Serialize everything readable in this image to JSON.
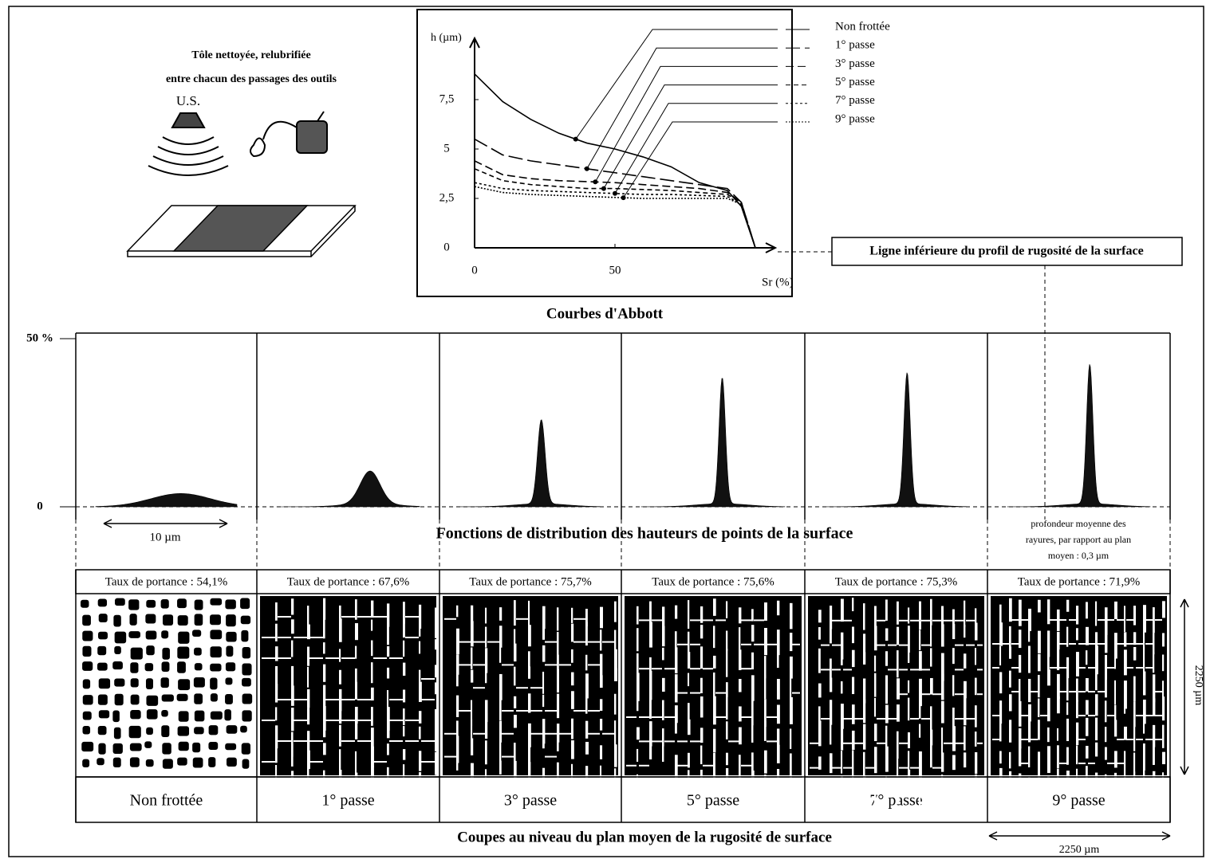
{
  "header": {
    "line1": "Tôle nettoyée, relubrifiée",
    "line2": "entre chacun des passages des outils",
    "us_label": "U.S."
  },
  "chart_data": {
    "type": "line",
    "y_label": "h (µm)",
    "x_label": "Sr (%)",
    "caption": "Courbes d'Abbott",
    "xlim": [
      0,
      105
    ],
    "ylim": [
      0,
      10
    ],
    "xticks": [
      0,
      50
    ],
    "yticks": [
      0,
      {
        "value": 2.5,
        "label": "2,5"
      },
      5,
      {
        "value": 7.5,
        "label": "7,5"
      }
    ],
    "x": [
      0,
      10,
      20,
      30,
      40,
      50,
      60,
      70,
      80,
      90,
      95,
      100
    ],
    "series": [
      {
        "name": "Non frottée",
        "color": "#000000",
        "style": "solid",
        "values": [
          8.8,
          7.4,
          6.5,
          5.8,
          5.3,
          5.0,
          4.6,
          4.1,
          3.3,
          2.9,
          2.1,
          0
        ]
      },
      {
        "name": "1° passe",
        "color": "#000000",
        "style": "long-dash",
        "values": [
          5.5,
          4.7,
          4.4,
          4.2,
          4.0,
          3.8,
          3.6,
          3.4,
          3.2,
          3.0,
          2.3,
          0
        ]
      },
      {
        "name": "3° passe",
        "color": "#000000",
        "style": "dash",
        "values": [
          4.4,
          3.7,
          3.5,
          3.4,
          3.35,
          3.3,
          3.2,
          3.1,
          3.0,
          2.8,
          2.3,
          0
        ]
      },
      {
        "name": "5° passe",
        "color": "#000000",
        "style": "short-dash",
        "values": [
          4.0,
          3.4,
          3.2,
          3.1,
          3.0,
          3.0,
          2.95,
          2.9,
          2.8,
          2.7,
          2.3,
          0
        ]
      },
      {
        "name": "7° passe",
        "color": "#000000",
        "style": "dotted",
        "values": [
          3.3,
          3.0,
          2.9,
          2.85,
          2.8,
          2.75,
          2.7,
          2.7,
          2.65,
          2.6,
          2.2,
          0
        ]
      },
      {
        "name": "9° passe",
        "color": "#000000",
        "style": "dense-dotted",
        "values": [
          3.1,
          2.8,
          2.7,
          2.65,
          2.6,
          2.55,
          2.5,
          2.5,
          2.5,
          2.5,
          2.2,
          0
        ]
      }
    ]
  },
  "callout": "Ligne inférieure du profil de rugosité de la surface",
  "distribution": {
    "title": "Fonctions de distribution des hauteurs de points de la surface",
    "ylim": [
      0,
      50
    ],
    "yticks": [
      0,
      {
        "value": 50,
        "label": "50 %"
      }
    ],
    "peaks": [
      3,
      9.7,
      25,
      37.5,
      39,
      41.5
    ],
    "scale_label": "10 µm",
    "note": [
      "profondeur moyenne des",
      "rayures, par rapport au plan",
      "moyen : 0,3 µm"
    ]
  },
  "rates": [
    "Taux de portance :  54,1%",
    "Taux de portance :  67,6%",
    "Taux de portance :  75,7%",
    "Taux de portance :  75,6%",
    "Taux de portance :  75,3%",
    "Taux de portance :  71,9%"
  ],
  "sections": {
    "title": "Coupes au niveau du plan moyen de la rugosité de surface",
    "height_label": "2250 µm",
    "width_label": "2250 µm"
  }
}
